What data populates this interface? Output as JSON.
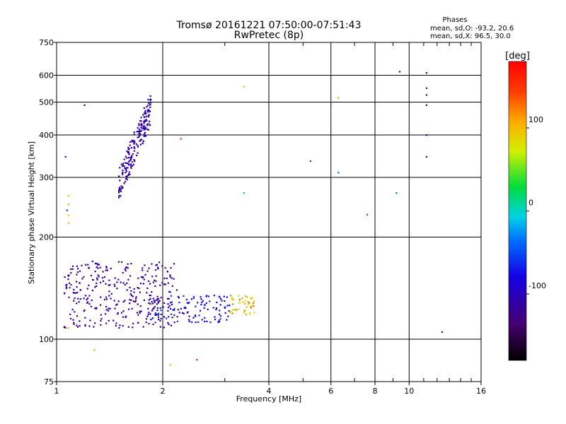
{
  "chart_data": {
    "type": "scatter",
    "title": "Tromsø 20161221 07:50:00-07:51:43",
    "subtitle": "RwPretec (8p)",
    "xlabel": "Frequency [MHz]",
    "ylabel": "Stationary phase Virtual Height [km]",
    "x_scale": "log",
    "y_scale": "log",
    "xlim": [
      1,
      16
    ],
    "ylim": [
      75,
      750
    ],
    "xticks": [
      1,
      2,
      4,
      6,
      8,
      10,
      16
    ],
    "yticks": [
      75,
      100,
      200,
      300,
      400,
      500,
      600,
      750
    ],
    "x_minor_ticks": [
      3,
      5,
      7,
      9,
      11,
      12,
      13,
      14,
      15
    ],
    "grid": true,
    "phases_title": "Phases",
    "stats": [
      "mean, sd,O: -93.2, 20.6",
      "mean, sd,X: 96.5, 30.0"
    ],
    "colorbar": {
      "label": "[deg]",
      "range": [
        -180,
        180
      ],
      "ticks": [
        -100,
        0,
        100
      ]
    },
    "clusters": [
      {
        "name": "",
        "x_range": [
          1.5,
          1.85
        ],
        "y_range": [
          285,
          480
        ],
        "phase_range": [
          -130,
          -90
        ],
        "count": 200,
        "curve": "rising"
      },
      {
        "name": "",
        "x_range": [
          1.05,
          2.2
        ],
        "y_range": [
          108,
          170
        ],
        "phase_range": [
          -130,
          -100
        ],
        "count": 320
      },
      {
        "name": "",
        "x_range": [
          1.8,
          3.1
        ],
        "y_range": [
          112,
          135
        ],
        "phase_range": [
          -105,
          -55
        ],
        "count": 120
      },
      {
        "name": "",
        "x_range": [
          3.1,
          3.7
        ],
        "y_range": [
          118,
          135
        ],
        "phase_range": [
          60,
          140
        ],
        "count": 45
      }
    ],
    "points": [
      {
        "x": 1.2,
        "y": 490,
        "phase": -110
      },
      {
        "x": 1.06,
        "y": 345,
        "phase": -80
      },
      {
        "x": 1.08,
        "y": 265,
        "phase": 100
      },
      {
        "x": 1.08,
        "y": 250,
        "phase": 110
      },
      {
        "x": 1.07,
        "y": 240,
        "phase": -60
      },
      {
        "x": 1.08,
        "y": 232,
        "phase": 90
      },
      {
        "x": 1.08,
        "y": 220,
        "phase": 100
      },
      {
        "x": 1.08,
        "y": 108,
        "phase": 100
      },
      {
        "x": 1.28,
        "y": 93,
        "phase": 110
      },
      {
        "x": 2.25,
        "y": 390,
        "phase": 150
      },
      {
        "x": 2.1,
        "y": 84,
        "phase": 100
      },
      {
        "x": 2.5,
        "y": 87,
        "phase": 170
      },
      {
        "x": 3.4,
        "y": 555,
        "phase": 60
      },
      {
        "x": 3.4,
        "y": 270,
        "phase": 30
      },
      {
        "x": 5.25,
        "y": 335,
        "phase": -50
      },
      {
        "x": 6.3,
        "y": 515,
        "phase": 110
      },
      {
        "x": 6.3,
        "y": 310,
        "phase": -40
      },
      {
        "x": 7.6,
        "y": 233,
        "phase": 170
      },
      {
        "x": 9.2,
        "y": 270,
        "phase": -40
      },
      {
        "x": 9.4,
        "y": 615,
        "phase": -120
      },
      {
        "x": 11.2,
        "y": 610,
        "phase": -120
      },
      {
        "x": 11.2,
        "y": 550,
        "phase": -120
      },
      {
        "x": 11.2,
        "y": 525,
        "phase": -110
      },
      {
        "x": 11.2,
        "y": 490,
        "phase": -120
      },
      {
        "x": 11.2,
        "y": 400,
        "phase": -100
      },
      {
        "x": 11.2,
        "y": 345,
        "phase": -120
      },
      {
        "x": 12.4,
        "y": 105,
        "phase": -130
      }
    ]
  }
}
